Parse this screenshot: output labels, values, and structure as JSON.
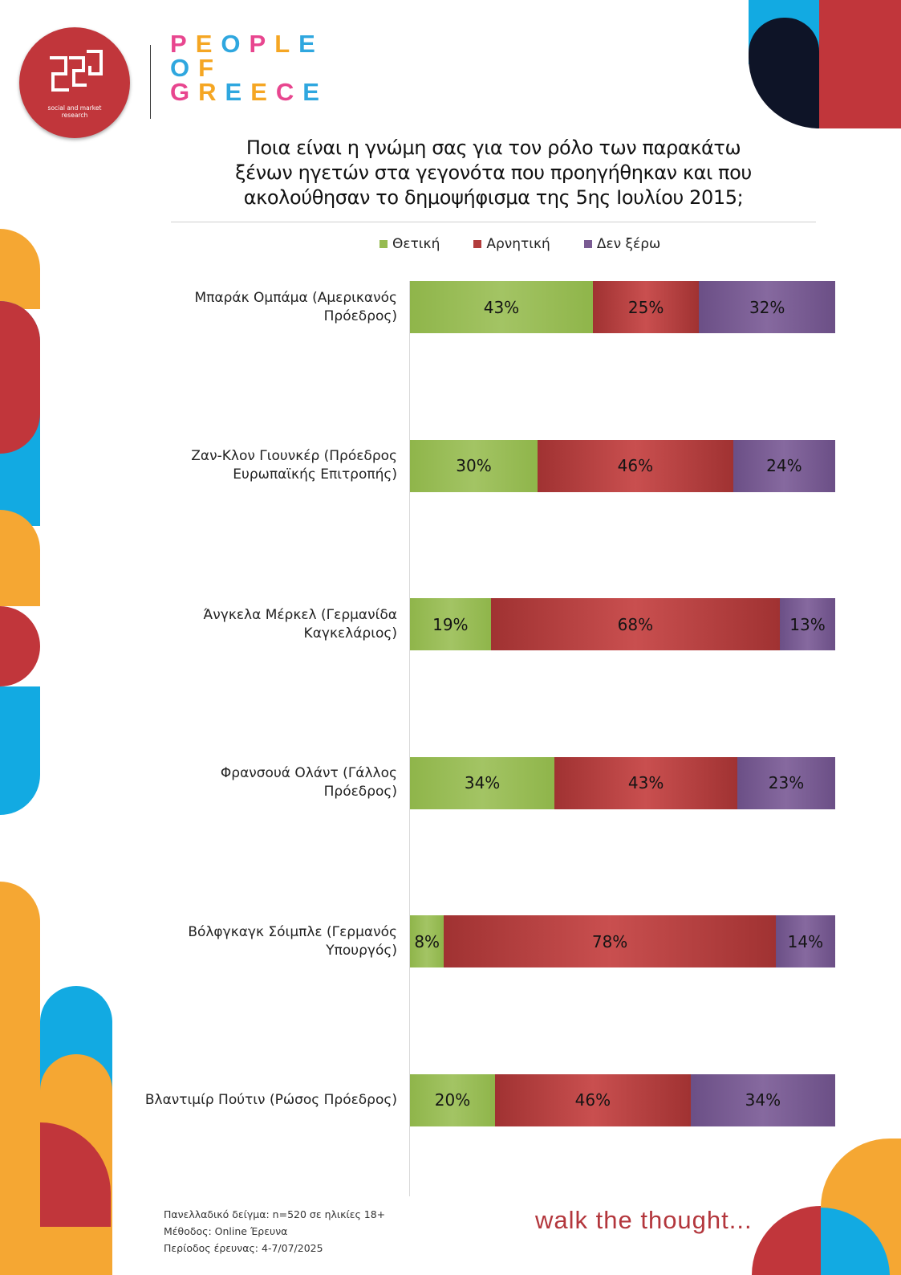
{
  "brand": {
    "logo_line1": "social and market",
    "logo_line2": "research",
    "name_lines": [
      "PEOPLE",
      "OF",
      "GREECE"
    ],
    "name_letter_colors": [
      [
        "#e8468f",
        "#f5a623",
        "#2fa7df",
        "#e8468f",
        "#f5a623",
        "#2fa7df"
      ],
      [
        "#2fa7df",
        "#f5a623"
      ],
      [
        "#e8468f",
        "#f5a623",
        "#2fa7df",
        "#f5a623",
        "#e8468f",
        "#2fa7df"
      ]
    ],
    "tagline": "walk the thought..."
  },
  "colors": {
    "red": "#c1363b",
    "orange": "#f5a733",
    "blue": "#12aae2",
    "navy": "#0e1427",
    "positive": "#96bb51",
    "negative": "#b23c3c",
    "dont_know": "#7a5b93"
  },
  "chart_data": {
    "type": "bar",
    "stacked": true,
    "orientation": "horizontal",
    "title": "Ποια είναι η γνώμη σας για τον ρόλο των παρακάτω ξένων ηγετών στα γεγονότα που προηγήθηκαν και που ακολούθησαν το δημοψήφισμα της 5ης Ιουλίου 2015;",
    "title_lines": [
      "Ποια είναι η γνώμη σας για τον ρόλο των παρακάτω",
      "ξένων ηγετών στα γεγονότα που προηγήθηκαν και που",
      "ακολούθησαν το δημοψήφισμα της 5ης Ιουλίου 2015;"
    ],
    "legend_position": "top",
    "xlim": [
      0,
      100
    ],
    "categories": [
      [
        "Μπαράκ Ομπάμα (Αμερικανός",
        "Πρόεδρος)"
      ],
      [
        "Ζαν-Κλον Γιουνκέρ (Πρόεδρος",
        "Ευρωπαϊκής Επιτροπής)"
      ],
      [
        "Άνγκελα Μέρκελ (Γερμανίδα",
        "Καγκελάριος)"
      ],
      [
        "Φρανσουά Ολάντ (Γάλλος",
        "Πρόεδρος)"
      ],
      [
        "Βόλφγκαγκ Σόιμπλε (Γερμανός",
        "Υπουργός)"
      ],
      [
        "Βλαντιμίρ Πούτιν (Ρώσος Πρόεδρος)"
      ]
    ],
    "series": [
      {
        "name": "Θετική",
        "values": [
          43,
          30,
          19,
          34,
          8,
          20
        ]
      },
      {
        "name": "Αρνητική",
        "values": [
          25,
          46,
          68,
          43,
          78,
          46
        ]
      },
      {
        "name": "Δεν ξέρω",
        "values": [
          32,
          24,
          13,
          23,
          14,
          34
        ]
      }
    ]
  },
  "footer": {
    "sample": "Πανελλαδικό δείγμα: n=520 σε ηλικίες 18+",
    "method": "Μέθοδος: Online Έρευνα",
    "period": "Περίοδος έρευνας: 4-7/07/2025"
  }
}
